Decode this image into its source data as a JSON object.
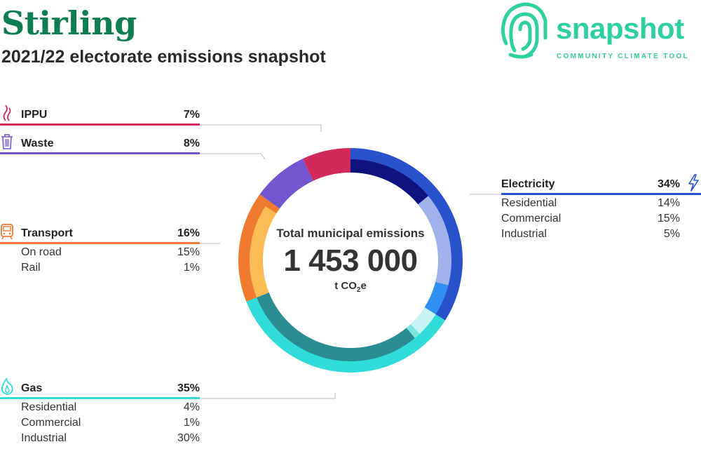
{
  "header": {
    "title": "Stirling",
    "subtitle": "2021/22 electorate emissions snapshot"
  },
  "logo": {
    "word": "snapshot",
    "tagline": "COMMUNITY CLIMATE TOOL",
    "color": "#2fd0a0",
    "icon": "fingerprint-icon"
  },
  "center": {
    "label": "Total municipal emissions",
    "value": "1 453 000",
    "unit_main": "t CO",
    "unit_sub": "2",
    "unit_end": "e"
  },
  "chart_data": {
    "type": "pie",
    "donut": true,
    "total": 1453000,
    "total_unit": "t CO2e",
    "categories": [
      {
        "name": "Electricity",
        "percent": 34,
        "color": "#2a51cc",
        "icon": "lightning-icon",
        "subcategories": [
          {
            "name": "Residential",
            "percent": 14,
            "color": "#0e137d"
          },
          {
            "name": "Commercial",
            "percent": 15,
            "color": "#9fb2ea"
          },
          {
            "name": "Industrial",
            "percent": 5,
            "color": "#2f8ff2"
          }
        ]
      },
      {
        "name": "Gas",
        "percent": 35,
        "color": "#30dcd8",
        "icon": "flame-icon",
        "subcategories": [
          {
            "name": "Residential",
            "percent": 4,
            "color": "#c8f4f4"
          },
          {
            "name": "Commercial",
            "percent": 1,
            "color": "#7fe4e0"
          },
          {
            "name": "Industrial",
            "percent": 30,
            "color": "#2c8c94"
          }
        ]
      },
      {
        "name": "Transport",
        "percent": 16,
        "color": "#f07a30",
        "icon": "train-icon",
        "subcategories": [
          {
            "name": "On road",
            "percent": 15,
            "color": "#fbbb55"
          },
          {
            "name": "Rail",
            "percent": 1,
            "color": "#f07a30"
          }
        ]
      },
      {
        "name": "Waste",
        "percent": 8,
        "color": "#7355cf",
        "icon": "trash-icon",
        "subcategories": []
      },
      {
        "name": "IPPU",
        "percent": 7,
        "color": "#d02a5a",
        "icon": "smoke-icon",
        "subcategories": []
      }
    ]
  },
  "labels": {
    "ippu": {
      "name": "IPPU",
      "pct": "7%"
    },
    "waste": {
      "name": "Waste",
      "pct": "8%"
    },
    "transport": {
      "name": "Transport",
      "pct": "16%",
      "subs": [
        {
          "name": "On road",
          "pct": "15%"
        },
        {
          "name": "Rail",
          "pct": "1%"
        }
      ]
    },
    "gas": {
      "name": "Gas",
      "pct": "35%",
      "subs": [
        {
          "name": "Residential",
          "pct": "4%"
        },
        {
          "name": "Commercial",
          "pct": "1%"
        },
        {
          "name": "Industrial",
          "pct": "30%"
        }
      ]
    },
    "electricity": {
      "name": "Electricity",
      "pct": "34%",
      "subs": [
        {
          "name": "Residential",
          "pct": "14%"
        },
        {
          "name": "Commercial",
          "pct": "15%"
        },
        {
          "name": "Industrial",
          "pct": "5%"
        }
      ]
    }
  }
}
